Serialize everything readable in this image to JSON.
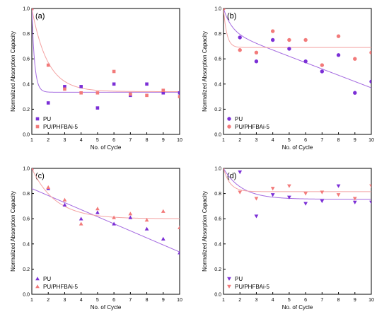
{
  "figure": {
    "colors": {
      "pu": "#7b2fd6",
      "pu_line": "#a46ae0",
      "phf": "#f27a7a",
      "phf_line": "#f4a3a3"
    }
  },
  "chart_data": [
    {
      "panel_label": "(a)",
      "type": "scatter",
      "xlabel": "No. of Cycle",
      "ylabel": "Normalized Absorption Capacity",
      "xlim": [
        1,
        10
      ],
      "ylim": [
        0,
        1.0
      ],
      "x_ticks": [
        "1",
        "2",
        "3",
        "4",
        "5",
        "6",
        "7",
        "8",
        "9",
        "10"
      ],
      "y_ticks": [
        "0.0",
        "0.2",
        "0.4",
        "0.6",
        "0.8",
        "1.0"
      ],
      "legend_position": "bottom-left",
      "series": [
        {
          "name": "PU",
          "marker": "square",
          "x": [
            1,
            2,
            3,
            4,
            5,
            6,
            7,
            8,
            9,
            10
          ],
          "y": [
            1.0,
            0.25,
            0.38,
            0.38,
            0.21,
            0.4,
            0.31,
            0.4,
            0.33,
            0.33
          ]
        },
        {
          "name": "PU/PHFBAi-5",
          "marker": "square",
          "x": [
            1,
            2,
            3,
            4,
            5,
            6,
            7,
            8,
            9,
            10
          ],
          "y": [
            1.0,
            0.55,
            0.36,
            0.33,
            0.33,
            0.5,
            0.32,
            0.31,
            0.35,
            0.3
          ]
        }
      ],
      "fits": [
        {
          "series": "PU",
          "model": "exponential decay",
          "y0": 0.335,
          "A": 0.665,
          "k": 6.0
        },
        {
          "series": "PU/PHFBAi-5",
          "model": "exponential decay",
          "y0": 0.34,
          "A": 0.66,
          "k": 1.05
        }
      ]
    },
    {
      "panel_label": "(b)",
      "type": "scatter",
      "xlabel": "No. of Cycle",
      "ylabel": "Normalized Absorption Capacity",
      "xlim": [
        1,
        10
      ],
      "ylim": [
        0,
        1.0
      ],
      "x_ticks": [
        "1",
        "2",
        "3",
        "4",
        "5",
        "6",
        "7",
        "8",
        "9",
        "10"
      ],
      "y_ticks": [
        "0.0",
        "0.2",
        "0.4",
        "0.6",
        "0.8",
        "1.0"
      ],
      "legend_position": "bottom-left",
      "series": [
        {
          "name": "PU",
          "marker": "circle",
          "x": [
            1,
            2,
            3,
            4,
            5,
            6,
            7,
            8,
            9,
            10
          ],
          "y": [
            1.0,
            0.77,
            0.58,
            0.75,
            0.68,
            0.58,
            0.5,
            0.63,
            0.33,
            0.42
          ]
        },
        {
          "name": "PU/PHFBAi-5",
          "marker": "circle",
          "x": [
            1,
            2,
            3,
            4,
            5,
            6,
            7,
            8,
            9,
            10
          ],
          "y": [
            1.0,
            0.67,
            0.65,
            0.82,
            0.75,
            0.75,
            0.55,
            0.78,
            0.6,
            0.65
          ]
        }
      ],
      "fits": [
        {
          "series": "PU",
          "model": "exponential decay plus linear",
          "y0": 0.82,
          "A": 0.18,
          "k": 2.0,
          "slope": -0.05
        },
        {
          "series": "PU/PHFBAi-5",
          "model": "exponential decay",
          "y0": 0.69,
          "A": 0.31,
          "k": 5.0
        }
      ]
    },
    {
      "panel_label": "(c)",
      "type": "scatter",
      "xlabel": "No. of Cycle",
      "ylabel": "Normalized Absorption Capacity",
      "xlim": [
        1,
        10
      ],
      "ylim": [
        0,
        1.0
      ],
      "x_ticks": [
        "1",
        "2",
        "3",
        "4",
        "5",
        "6",
        "7",
        "8",
        "9",
        "10"
      ],
      "y_ticks": [
        "0.0",
        "0.2",
        "0.4",
        "0.6",
        "0.8",
        "1.0"
      ],
      "legend_position": "bottom-left",
      "series": [
        {
          "name": "PU",
          "marker": "triangle-up",
          "x": [
            1,
            2,
            3,
            4,
            5,
            6,
            7,
            8,
            9,
            10
          ],
          "y": [
            1.0,
            0.84,
            0.71,
            0.6,
            0.65,
            0.56,
            0.61,
            0.52,
            0.44,
            0.33
          ]
        },
        {
          "name": "PU/PHFBAi-5",
          "marker": "triangle-up",
          "x": [
            1,
            2,
            3,
            4,
            5,
            6,
            7,
            8,
            9,
            10
          ],
          "y": [
            1.0,
            0.85,
            0.75,
            0.56,
            0.68,
            0.61,
            0.64,
            0.59,
            0.66,
            0.53
          ]
        }
      ],
      "fits": [
        {
          "series": "PU",
          "model": "linear",
          "a": 0.896,
          "b": -0.056
        },
        {
          "series": "PU/PHFBAi-5",
          "model": "exponential decay",
          "y0": 0.6,
          "A": 0.4,
          "k": 0.7
        }
      ]
    },
    {
      "panel_label": "(d)",
      "type": "scatter",
      "xlabel": "No. of Cycle",
      "ylabel": "Normalized Absorption Capacity",
      "xlim": [
        1,
        10
      ],
      "ylim": [
        0,
        1.0
      ],
      "x_ticks": [
        "1",
        "2",
        "3",
        "4",
        "5",
        "6",
        "7",
        "8",
        "9",
        "10"
      ],
      "y_ticks": [
        "0.0",
        "0.2",
        "0.4",
        "0.6",
        "0.8",
        "1.0"
      ],
      "legend_position": "bottom-left",
      "series": [
        {
          "name": "PU",
          "marker": "triangle-down",
          "x": [
            1,
            2,
            3,
            4,
            5,
            6,
            7,
            8,
            9,
            10
          ],
          "y": [
            1.0,
            0.97,
            0.62,
            0.79,
            0.77,
            0.72,
            0.74,
            0.86,
            0.73,
            0.73
          ]
        },
        {
          "name": "PU/PHFBAi-5",
          "marker": "triangle-down",
          "x": [
            1,
            2,
            3,
            4,
            5,
            6,
            7,
            8,
            9,
            10
          ],
          "y": [
            1.0,
            0.81,
            0.76,
            0.84,
            0.86,
            0.8,
            0.81,
            0.79,
            0.76,
            0.86
          ]
        }
      ],
      "fits": [
        {
          "series": "PU",
          "model": "exponential decay",
          "y0": 0.755,
          "A": 0.245,
          "k": 0.9
        },
        {
          "series": "PU/PHFBAi-5",
          "model": "exponential decay",
          "y0": 0.815,
          "A": 0.185,
          "k": 2.5
        }
      ]
    }
  ]
}
